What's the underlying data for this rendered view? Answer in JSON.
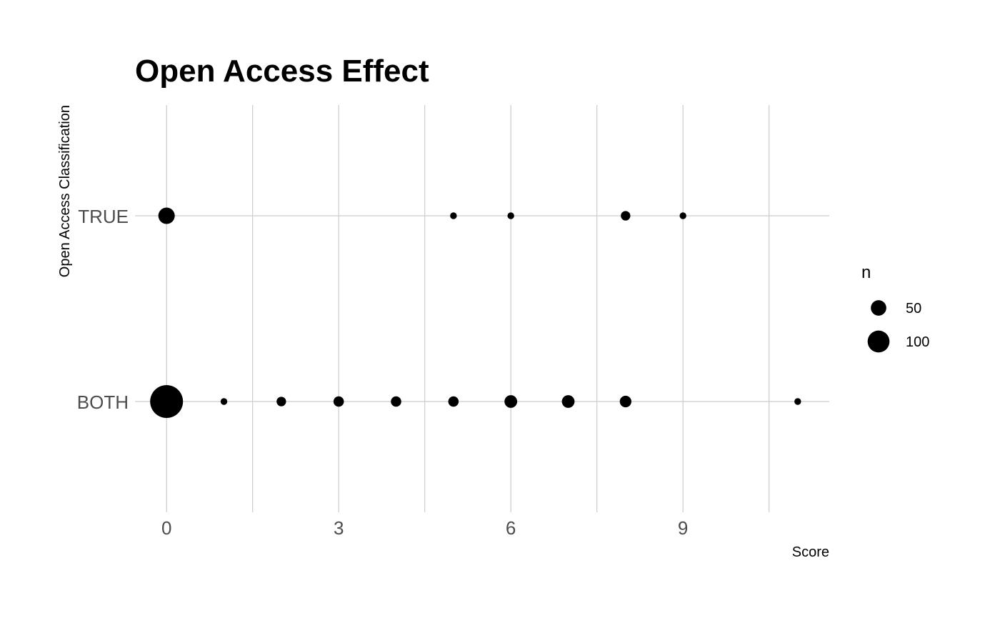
{
  "chart_data": {
    "type": "scatter",
    "title": "Open Access Effect",
    "xlabel": "Score",
    "ylabel": "Open Access Classification",
    "xlim": [
      -0.55,
      11.55
    ],
    "x_ticks": [
      0,
      3,
      6,
      9
    ],
    "x_minor": [
      1.5,
      4.5,
      7.5,
      10.5
    ],
    "categories": [
      "BOTH",
      "TRUE"
    ],
    "grid": true,
    "legend": {
      "title": "n",
      "placement": "right",
      "entries": [
        {
          "label": "50",
          "value": 50
        },
        {
          "label": "100",
          "value": 100
        }
      ]
    },
    "series": [
      {
        "category": "TRUE",
        "points": [
          {
            "x": 0,
            "n": 30
          },
          {
            "x": 5,
            "n": 5
          },
          {
            "x": 6,
            "n": 5
          },
          {
            "x": 8,
            "n": 10
          },
          {
            "x": 9,
            "n": 5
          }
        ]
      },
      {
        "category": "BOTH",
        "points": [
          {
            "x": 0,
            "n": 120
          },
          {
            "x": 1,
            "n": 5
          },
          {
            "x": 2,
            "n": 10
          },
          {
            "x": 3,
            "n": 12
          },
          {
            "x": 4,
            "n": 12
          },
          {
            "x": 5,
            "n": 12
          },
          {
            "x": 6,
            "n": 18
          },
          {
            "x": 7,
            "n": 18
          },
          {
            "x": 8,
            "n": 15
          },
          {
            "x": 11,
            "n": 5
          }
        ]
      }
    ]
  }
}
